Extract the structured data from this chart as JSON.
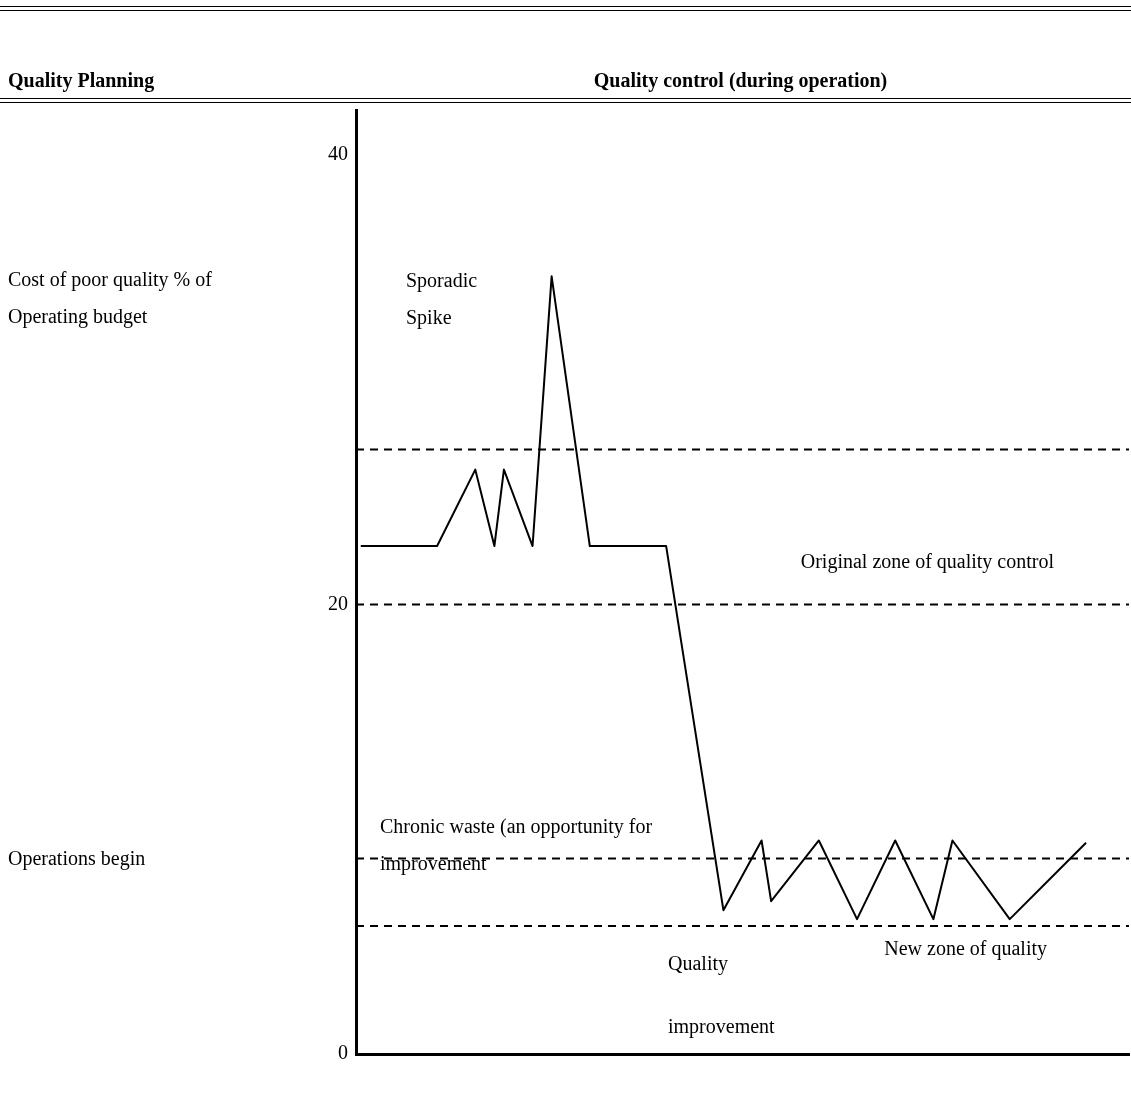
{
  "chart_data": {
    "type": "line",
    "title": "Quality control (during operation)",
    "categories": [
      null,
      null,
      null,
      null,
      null,
      null,
      null,
      null,
      null,
      null,
      null,
      null,
      null,
      null,
      null,
      null,
      null,
      null,
      null,
      null,
      null,
      null,
      null,
      null,
      null,
      null,
      null,
      null,
      null,
      null,
      null,
      null,
      null,
      null,
      null,
      null,
      null,
      null,
      null,
      null,
      null,
      null,
      null,
      null,
      null,
      null,
      null,
      null,
      null,
      null,
      null,
      null,
      null,
      null,
      null,
      null,
      null,
      null,
      null,
      null,
      null,
      null,
      null,
      null,
      null,
      null,
      null,
      null,
      null,
      null,
      null,
      null,
      null,
      null,
      null,
      null,
      null,
      null,
      null,
      null,
      null
    ],
    "ylim": [
      0,
      42
    ],
    "yticks": [
      0,
      20,
      40
    ],
    "legend": false,
    "marker": "none",
    "line_style": "solid",
    "series": [
      {
        "color": "#000000",
        "values": [
          22.6,
          null,
          null,
          null,
          null,
          null,
          null,
          null,
          22.6,
          null,
          null,
          null,
          26.0,
          null,
          22.6,
          26.0,
          null,
          null,
          22.6,
          null,
          34.6,
          null,
          null,
          null,
          22.6,
          null,
          null,
          null,
          null,
          null,
          null,
          null,
          22.6,
          null,
          null,
          null,
          null,
          null,
          6.4,
          null,
          null,
          null,
          9.5,
          6.8,
          null,
          null,
          null,
          null,
          9.5,
          null,
          null,
          null,
          6.0,
          null,
          null,
          null,
          9.5,
          null,
          null,
          null,
          6.0,
          null,
          9.5,
          null,
          null,
          null,
          null,
          null,
          6.0,
          null,
          null,
          null,
          null,
          null,
          null,
          null,
          9.4,
          null,
          null,
          null,
          null
        ]
      }
    ],
    "ref_lines": [
      {
        "axis": "y",
        "value": 26.9,
        "color": "#000000",
        "line_style": "dashed"
      },
      {
        "axis": "y",
        "value": 20,
        "label": "Original zone of quality control",
        "color": "#000000",
        "line_style": "dashed"
      },
      {
        "axis": "y",
        "value": 8.7,
        "color": "#000000",
        "line_style": "dashed"
      },
      {
        "axis": "y",
        "value": 5.7,
        "label": "New zone of quality",
        "color": "#000000",
        "line_style": "dashed"
      }
    ],
    "annotations": [
      "Quality Planning",
      "Operations begin",
      "Sporadic Spike",
      "Chronic waste (an opportunity for improvement",
      "Quality improvement",
      "Cost of poor quality % of Operating budget"
    ]
  }
}
